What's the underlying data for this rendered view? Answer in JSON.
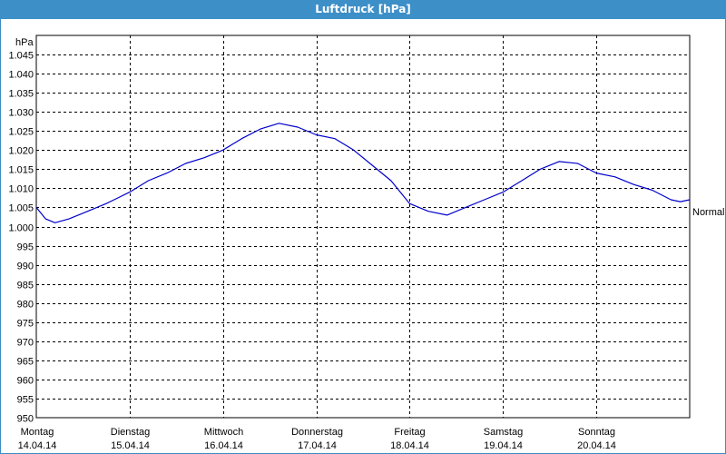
{
  "window": {
    "title": "Luftdruck [hPa]"
  },
  "chart_data": {
    "type": "line",
    "title": "Luftdruck [hPa]",
    "ylabel": "hPa",
    "ylim": [
      950,
      1050
    ],
    "yticks": [
      "950",
      "955",
      "960",
      "965",
      "970",
      "975",
      "980",
      "985",
      "990",
      "995",
      "1.000",
      "1.005",
      "1.010",
      "1.015",
      "1.020",
      "1.025",
      "1.030",
      "1.035",
      "1.040",
      "1.045"
    ],
    "xlim": [
      0,
      7
    ],
    "x_labels": [
      {
        "day": "Montag",
        "date": "14.04.14"
      },
      {
        "day": "Dienstag",
        "date": "15.04.14"
      },
      {
        "day": "Mittwoch",
        "date": "16.04.14"
      },
      {
        "day": "Donnerstag",
        "date": "17.04.14"
      },
      {
        "day": "Freitag",
        "date": "18.04.14"
      },
      {
        "day": "Samstag",
        "date": "19.04.14"
      },
      {
        "day": "Sonntag",
        "date": "20.04.14"
      }
    ],
    "grid": true,
    "reference_line": {
      "label": "Normal"
    },
    "series": [
      {
        "color": "#0000cc",
        "x": [
          0.0,
          0.1,
          0.2,
          0.35,
          0.5,
          0.75,
          1.0,
          1.2,
          1.4,
          1.6,
          1.8,
          2.0,
          2.2,
          2.4,
          2.6,
          2.8,
          3.0,
          3.2,
          3.4,
          3.6,
          3.8,
          4.0,
          4.2,
          4.4,
          4.6,
          4.8,
          5.0,
          5.2,
          5.4,
          5.6,
          5.8,
          6.0,
          6.2,
          6.4,
          6.6,
          6.8,
          6.9,
          7.0
        ],
        "y": [
          1005,
          1002,
          1001,
          1002,
          1003.5,
          1006,
          1009,
          1012,
          1014,
          1016.5,
          1018,
          1020,
          1023,
          1025.5,
          1027,
          1026,
          1024,
          1023,
          1020,
          1016,
          1012,
          1006,
          1004,
          1003,
          1005,
          1007,
          1009,
          1012,
          1015,
          1017,
          1016.5,
          1014,
          1013,
          1011,
          1009.5,
          1007,
          1006.5,
          1007
        ]
      }
    ]
  }
}
